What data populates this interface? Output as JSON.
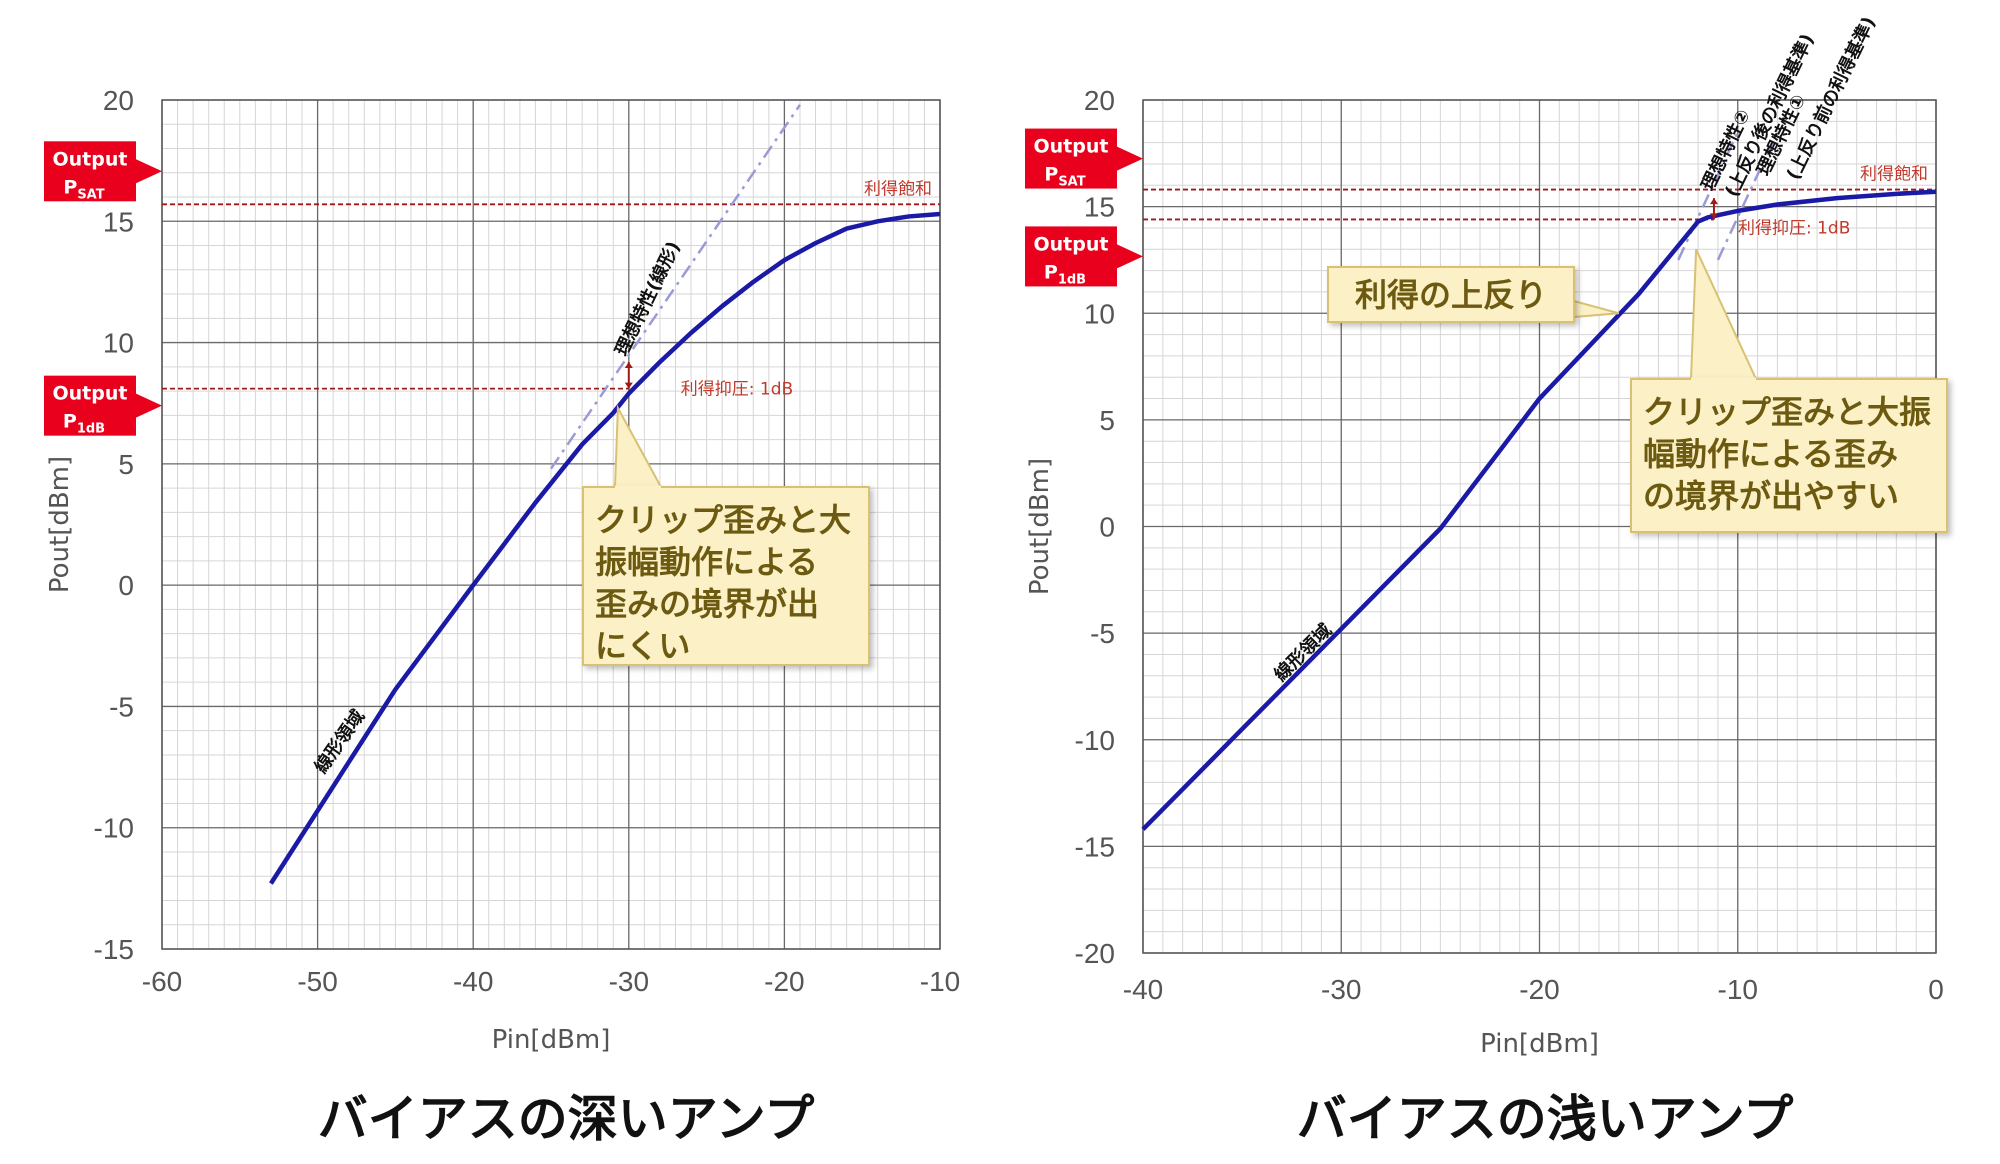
{
  "chart_data": [
    {
      "type": "line",
      "title": "バイアスの深いアンプ",
      "xlabel": "Pin[dBm]",
      "ylabel": "Pout[dBm]",
      "xlim": [
        -60,
        -10
      ],
      "ylim": [
        -15,
        20
      ],
      "xticks": [
        "-60",
        "-50",
        "-40",
        "-30",
        "-20",
        "-10"
      ],
      "yticks": [
        "-15",
        "-10",
        "-5",
        "0",
        "5",
        "10",
        "15",
        "20"
      ],
      "grid": true,
      "series": [
        {
          "values": [
            [
              -53,
              -12.3
            ],
            [
              -50,
              -9.3
            ],
            [
              -45,
              -4.3
            ],
            [
              -40,
              0.0
            ],
            [
              -36,
              3.4
            ],
            [
              -33,
              5.8
            ],
            [
              -31,
              7.1
            ],
            [
              -30,
              7.9
            ],
            [
              -28,
              9.2
            ],
            [
              -26,
              10.4
            ],
            [
              -24,
              11.5
            ],
            [
              -22,
              12.5
            ],
            [
              -20,
              13.4
            ],
            [
              -18,
              14.1
            ],
            [
              -16,
              14.7
            ],
            [
              -14,
              15.0
            ],
            [
              -12,
              15.2
            ],
            [
              -10,
              15.3
            ]
          ]
        },
        {
          "values": [
            [
              -35,
              4.8
            ],
            [
              -19,
              19.8
            ]
          ]
        }
      ],
      "colors": {
        "curve": "#1a1aa6",
        "ideal": "#9a9ad8",
        "guide": "#a01818",
        "tag": "#e8001c"
      },
      "annotations": {
        "ideal_label": "理想特性(線形)",
        "linear_label": "線形領域",
        "saturation_label": "利得飽和",
        "compression_label": "利得抑圧: 1dB",
        "psat_level": 15.7,
        "p1db_level": 8.1,
        "p1db_pin": -30
      },
      "tags": {
        "psat": {
          "line1": "Output",
          "main": "P",
          "sub": "SAT"
        },
        "p1db": {
          "line1": "Output",
          "main": "P",
          "sub": "1dB"
        }
      },
      "callout": [
        "クリップ歪みと大",
        "振幅動作による",
        "歪みの境界が出",
        "にくい"
      ]
    },
    {
      "type": "line",
      "title": "バイアスの浅いアンプ",
      "xlabel": "Pin[dBm]",
      "ylabel": "Pout[dBm]",
      "xlim": [
        -40,
        0
      ],
      "ylim": [
        -20,
        20
      ],
      "xticks": [
        "-40",
        "-30",
        "-20",
        "-10",
        "0"
      ],
      "yticks": [
        "-20",
        "-15",
        "-10",
        "-5",
        "0",
        "5",
        "10",
        "15",
        "20"
      ],
      "grid": true,
      "series": [
        {
          "values": [
            [
              -40,
              -14.2
            ],
            [
              -35,
              -9.5
            ],
            [
              -30,
              -4.8
            ],
            [
              -25,
              -0.1
            ],
            [
              -20,
              6.0
            ],
            [
              -15,
              10.9
            ],
            [
              -12,
              14.3
            ],
            [
              -11.5,
              14.5
            ],
            [
              -10,
              14.8
            ],
            [
              -8,
              15.1
            ],
            [
              -5,
              15.4
            ],
            [
              -2,
              15.6
            ],
            [
              0,
              15.7
            ]
          ]
        },
        {
          "values": [
            [
              -13,
              12.5
            ],
            [
              -10,
              18.5
            ]
          ]
        },
        {
          "values": [
            [
              -11,
              12.5
            ],
            [
              -8,
              18.5
            ]
          ]
        }
      ],
      "colors": {
        "curve": "#1a1aa6",
        "ideal": "#9a9ad8",
        "guide": "#a01818",
        "tag": "#e8001c"
      },
      "annotations": {
        "ideal2_label1": "理想特性②",
        "ideal2_label2": "(上反り後の利得基準)",
        "ideal1_label1": "理想特性①",
        "ideal1_label2": "(上反り前の利得基準)",
        "linear_label": "線形領域",
        "saturation_label": "利得飽和",
        "compression_label": "利得抑圧: 1dB",
        "psat_level": 15.8,
        "p1db_level": 14.4,
        "p1db_pin": -11.2,
        "gain_rise_label": "利得の上反り"
      },
      "tags": {
        "psat": {
          "line1": "Output",
          "main": "P",
          "sub": "SAT"
        },
        "p1db": {
          "line1": "Output",
          "main": "P",
          "sub": "1dB"
        }
      },
      "callout": [
        "クリップ歪みと大振",
        "幅動作による歪み",
        "の境界が出やすい"
      ]
    }
  ]
}
